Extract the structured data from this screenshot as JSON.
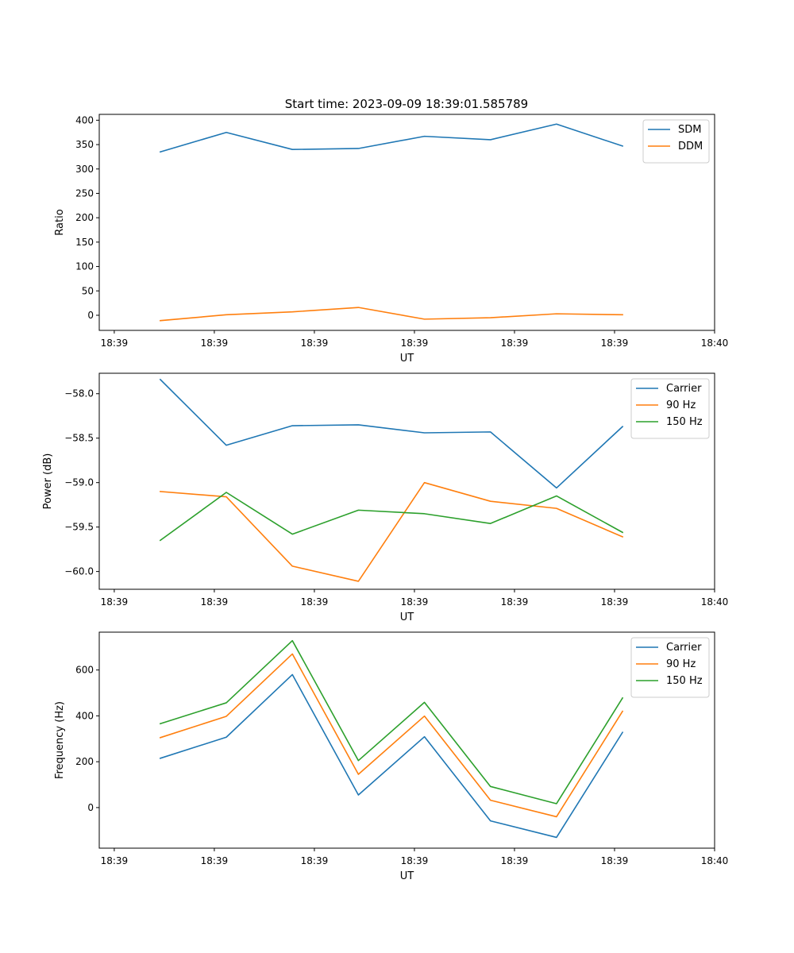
{
  "figure_title": "Start time: 2023-09-09 18:39:01.585789",
  "colors": {
    "blue": "#1f77b4",
    "orange": "#ff7f0e",
    "green": "#2ca02c",
    "axis": "#000000",
    "legend_border": "#cccccc",
    "background": "#ffffff"
  },
  "chart_data": [
    {
      "type": "line",
      "title": "Start time: 2023-09-09 18:39:01.585789",
      "xlabel": "UT",
      "ylabel": "Ratio",
      "xticks": [
        "18:39",
        "18:39",
        "18:39",
        "18:39",
        "18:39",
        "18:39",
        "18:40"
      ],
      "xtick_values": [
        0,
        1,
        2,
        3,
        4,
        5,
        6
      ],
      "xlim": [
        -0.15,
        6.0
      ],
      "x": [
        0.46,
        1.12,
        1.78,
        2.44,
        3.1,
        3.76,
        4.42,
        5.08
      ],
      "yticks": [
        0,
        50,
        100,
        150,
        200,
        250,
        300,
        350,
        400
      ],
      "ylim": [
        -31,
        412
      ],
      "legend": "top-right",
      "series": [
        {
          "name": "SDM",
          "color": "#1f77b4",
          "values": [
            335,
            375,
            340,
            342,
            367,
            360,
            392,
            347
          ]
        },
        {
          "name": "DDM",
          "color": "#ff7f0e",
          "values": [
            -11,
            1,
            7,
            16,
            -8,
            -5,
            3,
            1
          ]
        }
      ]
    },
    {
      "type": "line",
      "title": "",
      "xlabel": "UT",
      "ylabel": "Power (dB)",
      "xticks": [
        "18:39",
        "18:39",
        "18:39",
        "18:39",
        "18:39",
        "18:39",
        "18:40"
      ],
      "xtick_values": [
        0,
        1,
        2,
        3,
        4,
        5,
        6
      ],
      "xlim": [
        -0.15,
        6.0
      ],
      "x": [
        0.46,
        1.12,
        1.78,
        2.44,
        3.1,
        3.76,
        4.42,
        5.08
      ],
      "yticks": [
        -60.0,
        -59.5,
        -59.0,
        -58.5,
        -58.0
      ],
      "ytick_labels": [
        "−60.0",
        "−59.5",
        "−59.0",
        "−58.5",
        "−58.0"
      ],
      "ylim": [
        -60.2,
        -57.77
      ],
      "legend": "top-right",
      "series": [
        {
          "name": "Carrier",
          "color": "#1f77b4",
          "values": [
            -57.84,
            -58.58,
            -58.36,
            -58.35,
            -58.44,
            -58.43,
            -59.06,
            -58.37
          ]
        },
        {
          "name": "90 Hz",
          "color": "#ff7f0e",
          "values": [
            -59.1,
            -59.16,
            -59.94,
            -60.11,
            -59.0,
            -59.21,
            -59.29,
            -59.61
          ]
        },
        {
          "name": "150 Hz",
          "color": "#2ca02c",
          "values": [
            -59.65,
            -59.11,
            -59.58,
            -59.31,
            -59.35,
            -59.46,
            -59.15,
            -59.56
          ]
        }
      ]
    },
    {
      "type": "line",
      "title": "",
      "xlabel": "UT",
      "ylabel": "Frequency (Hz)",
      "xticks": [
        "18:39",
        "18:39",
        "18:39",
        "18:39",
        "18:39",
        "18:39",
        "18:40"
      ],
      "xtick_values": [
        0,
        1,
        2,
        3,
        4,
        5,
        6
      ],
      "xlim": [
        -0.15,
        6.0
      ],
      "x": [
        0.46,
        1.12,
        1.78,
        2.44,
        3.1,
        3.76,
        4.42,
        5.08
      ],
      "yticks": [
        0,
        200,
        400,
        600
      ],
      "ylim": [
        -177,
        765
      ],
      "legend": "top-right",
      "series": [
        {
          "name": "Carrier",
          "color": "#1f77b4",
          "values": [
            215,
            307,
            580,
            55,
            309,
            -58,
            -130,
            328
          ]
        },
        {
          "name": "90 Hz",
          "color": "#ff7f0e",
          "values": [
            305,
            398,
            670,
            145,
            399,
            32,
            -40,
            420
          ]
        },
        {
          "name": "150 Hz",
          "color": "#2ca02c",
          "values": [
            366,
            457,
            728,
            205,
            459,
            92,
            17,
            478
          ]
        }
      ]
    }
  ]
}
